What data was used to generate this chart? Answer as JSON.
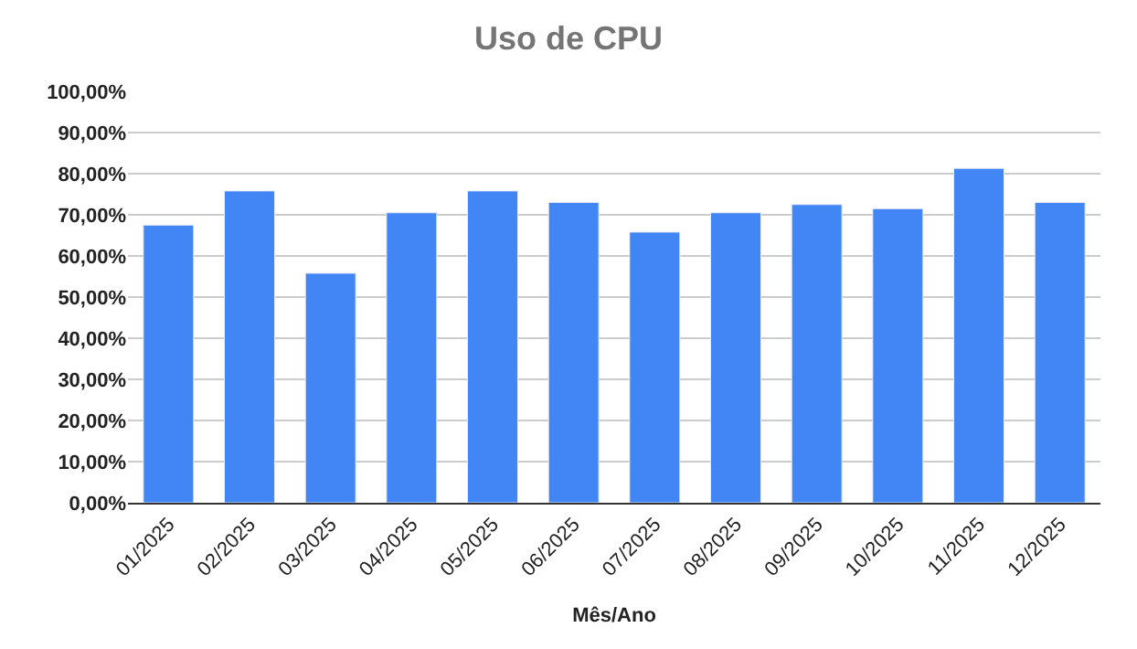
{
  "chart_data": {
    "type": "bar",
    "title": "Uso de CPU",
    "xlabel": "Mês/Ano",
    "categories": [
      "01/2025",
      "02/2025",
      "03/2025",
      "04/2025",
      "05/2025",
      "06/2025",
      "07/2025",
      "08/2025",
      "09/2025",
      "10/2025",
      "11/2025",
      "12/2025"
    ],
    "series": [
      {
        "color": "#4285f4",
        "values": [
          67.5,
          75.8,
          55.8,
          70.5,
          75.8,
          73.0,
          65.8,
          70.5,
          72.5,
          71.5,
          81.3,
          73.0
        ]
      }
    ],
    "ylim": [
      0,
      100
    ],
    "yticks": [
      {
        "value": 0,
        "label": "0,00%"
      },
      {
        "value": 10,
        "label": "10,00%"
      },
      {
        "value": 20,
        "label": "20,00%"
      },
      {
        "value": 30,
        "label": "30,00%"
      },
      {
        "value": 40,
        "label": "40,00%"
      },
      {
        "value": 50,
        "label": "50,00%"
      },
      {
        "value": 60,
        "label": "60,00%"
      },
      {
        "value": 70,
        "label": "70,00%"
      },
      {
        "value": 80,
        "label": "80,00%"
      },
      {
        "value": 90,
        "label": "90,00%"
      },
      {
        "value": 100,
        "label": "100,00%"
      }
    ],
    "grid": "y",
    "legend": false
  }
}
